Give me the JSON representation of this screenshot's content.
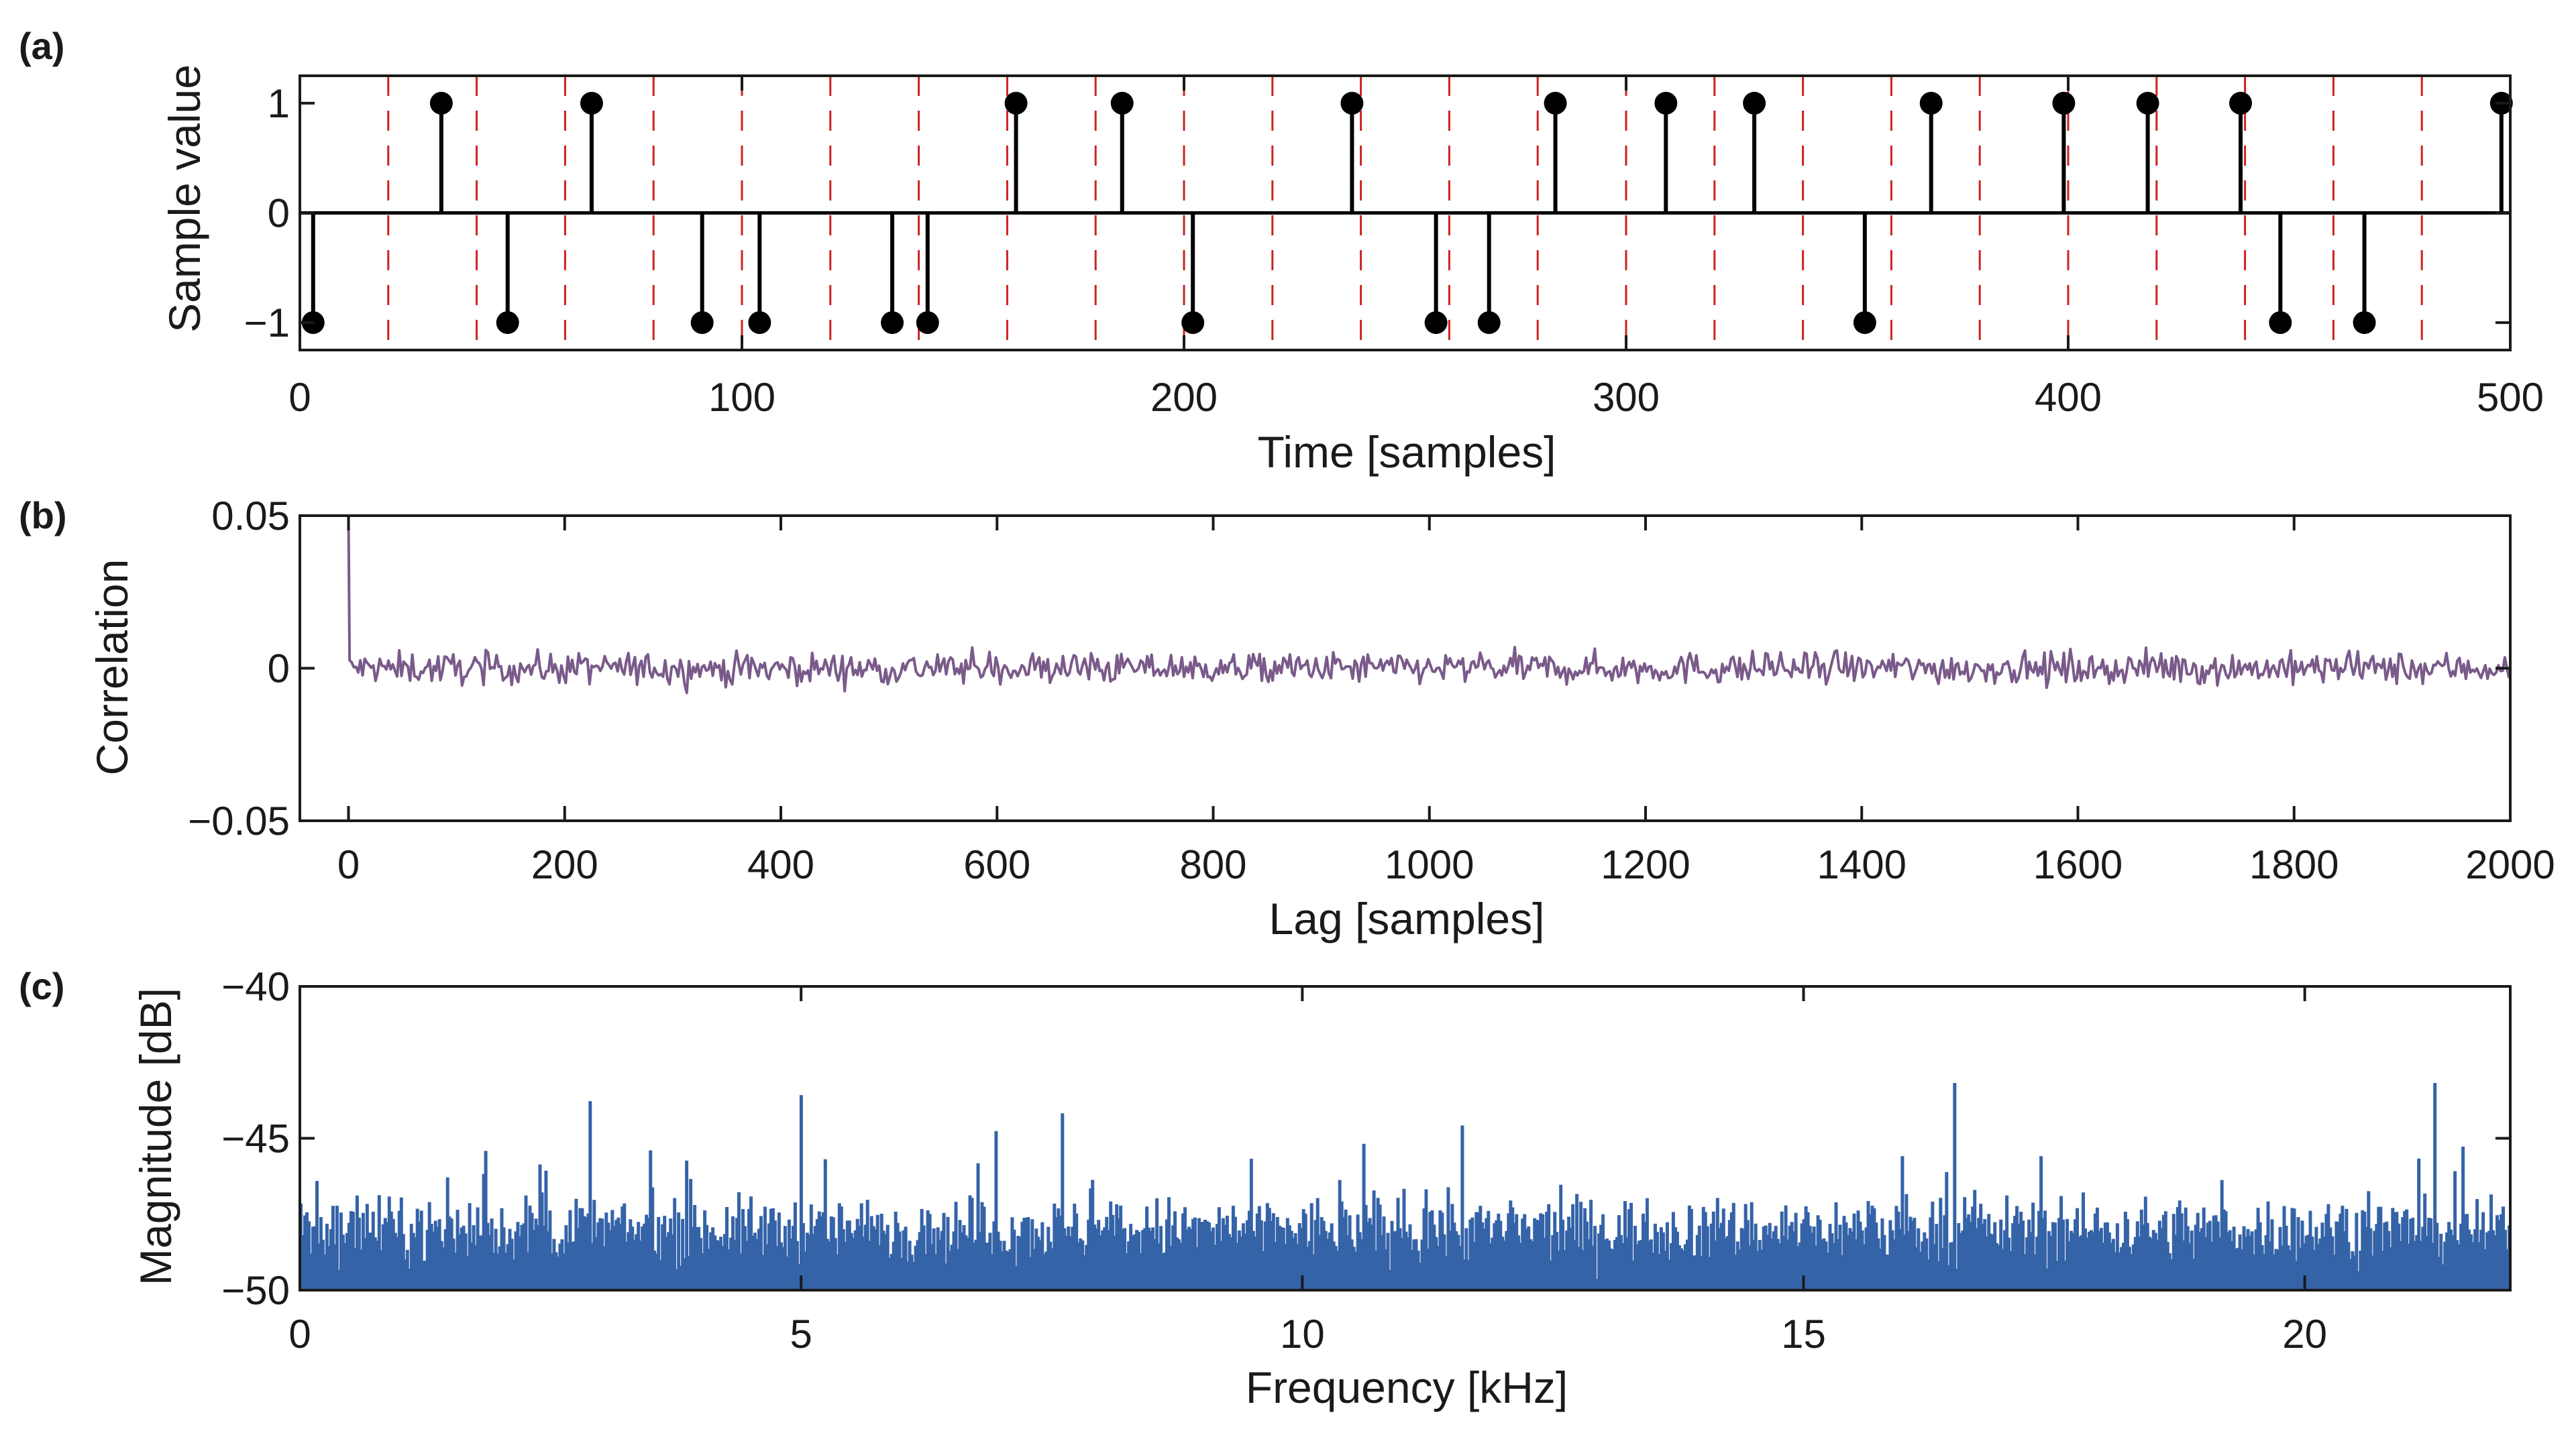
{
  "colors": {
    "stem": "#000000",
    "grid_dash": "#cc2222",
    "correlation": "#7a5a8a",
    "spectrum": "#3563a8",
    "axes": "#1a1a1a"
  },
  "chart_data": [
    {
      "panel": "(a)",
      "type": "stem",
      "xlabel": "Time [samples]",
      "ylabel": "Sample value",
      "xlim": [
        0,
        500
      ],
      "ylim": [
        -1.25,
        1.25
      ],
      "xticks": [
        0,
        100,
        200,
        300,
        400,
        500
      ],
      "yticks": [
        -1,
        0,
        1
      ],
      "ytick_labels": [
        "−1",
        "0",
        "1"
      ],
      "vlines_every": 20,
      "points": [
        {
          "x": 3,
          "y": -1
        },
        {
          "x": 32,
          "y": 1
        },
        {
          "x": 47,
          "y": -1
        },
        {
          "x": 66,
          "y": 1
        },
        {
          "x": 91,
          "y": -1
        },
        {
          "x": 104,
          "y": -1
        },
        {
          "x": 134,
          "y": -1
        },
        {
          "x": 142,
          "y": -1
        },
        {
          "x": 162,
          "y": 1
        },
        {
          "x": 186,
          "y": 1
        },
        {
          "x": 202,
          "y": -1
        },
        {
          "x": 238,
          "y": 1
        },
        {
          "x": 257,
          "y": -1
        },
        {
          "x": 269,
          "y": -1
        },
        {
          "x": 284,
          "y": 1
        },
        {
          "x": 309,
          "y": 1
        },
        {
          "x": 329,
          "y": 1
        },
        {
          "x": 354,
          "y": -1
        },
        {
          "x": 369,
          "y": 1
        },
        {
          "x": 399,
          "y": 1
        },
        {
          "x": 418,
          "y": 1
        },
        {
          "x": 439,
          "y": 1
        },
        {
          "x": 448,
          "y": -1
        },
        {
          "x": 467,
          "y": -1
        },
        {
          "x": 498,
          "y": 1
        }
      ]
    },
    {
      "panel": "(b)",
      "type": "line",
      "xlabel": "Lag [samples]",
      "ylabel": "Correlation",
      "xlim": [
        -45,
        2000
      ],
      "ylim": [
        -0.05,
        0.05
      ],
      "xticks": [
        0,
        200,
        400,
        600,
        800,
        1000,
        1200,
        1400,
        1600,
        1800,
        2000
      ],
      "yticks": [
        -0.05,
        0,
        0.05
      ],
      "ytick_labels": [
        "−0.05",
        "0",
        "0.05"
      ],
      "peak": {
        "lag": 0,
        "value": 0.05
      },
      "noise_amplitude": 0.004
    },
    {
      "panel": "(c)",
      "type": "bar",
      "xlabel": "Frequency [kHz]",
      "ylabel": "Magnitude [dB]",
      "xlim": [
        0,
        22.05
      ],
      "ylim": [
        -50,
        -40
      ],
      "xticks": [
        0,
        5,
        10,
        15,
        20
      ],
      "yticks": [
        -50,
        -45,
        -40
      ],
      "ytick_labels": [
        "−50",
        "−45",
        "−40"
      ],
      "typical_level_db": -48,
      "peaks": [
        {
          "f": 5.0,
          "db": -43.6
        },
        {
          "f": 16.5,
          "db": -43.2
        },
        {
          "f": 21.3,
          "db": -43.2
        },
        {
          "f": 2.9,
          "db": -43.8
        },
        {
          "f": 7.6,
          "db": -44.2
        },
        {
          "f": 11.6,
          "db": -44.6
        }
      ]
    }
  ]
}
